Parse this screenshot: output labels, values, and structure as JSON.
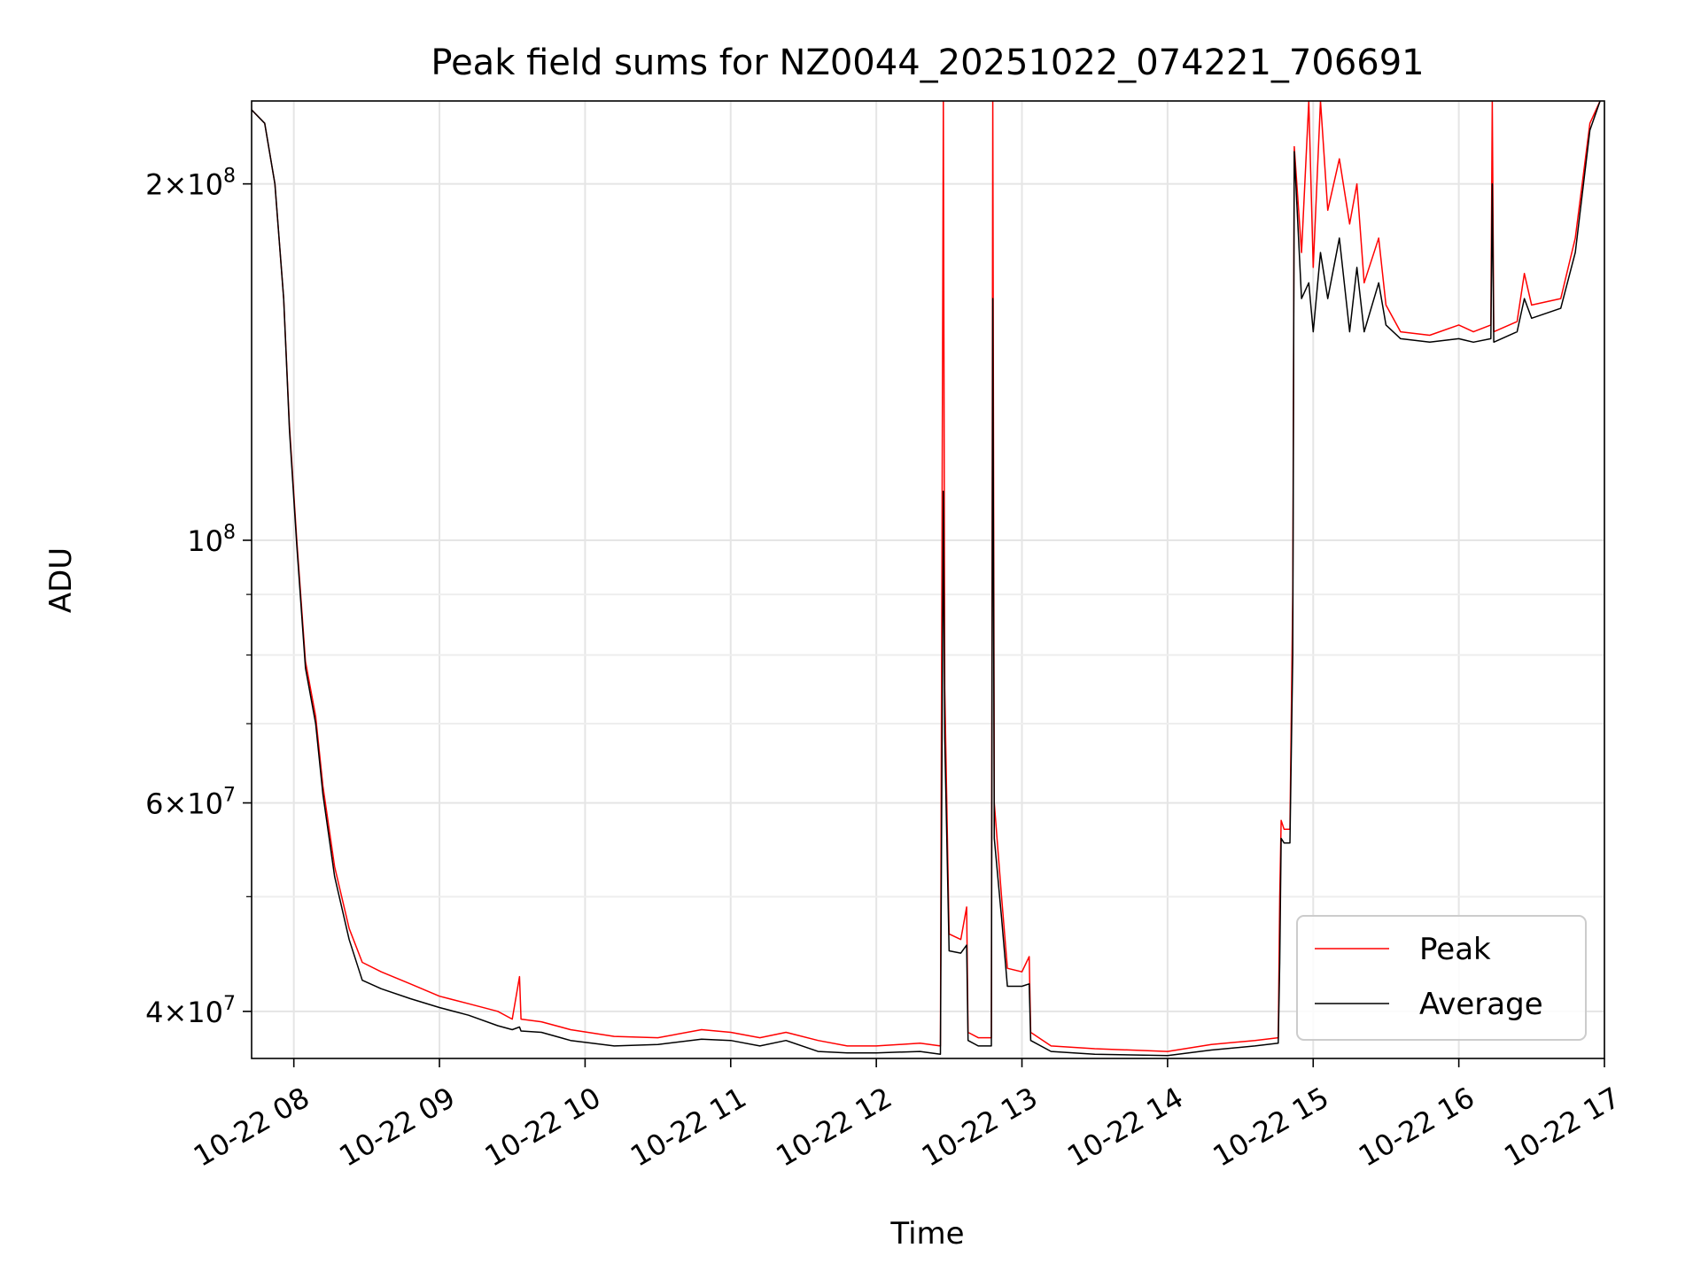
{
  "chart_data": {
    "type": "line",
    "title": "Peak field sums for NZ0044_20251022_074221_706691",
    "xlabel": "Time",
    "ylabel": "ADU",
    "x_unit": "hours (10-22)",
    "xlim": [
      7.71,
      17.0
    ],
    "ylim": [
      36500000,
      235000000
    ],
    "y_scale": "log",
    "grid": true,
    "legend_position": "lower right",
    "x_ticks": [
      {
        "value": 8,
        "label": "10-22 08"
      },
      {
        "value": 9,
        "label": "10-22 09"
      },
      {
        "value": 10,
        "label": "10-22 10"
      },
      {
        "value": 11,
        "label": "10-22 11"
      },
      {
        "value": 12,
        "label": "10-22 12"
      },
      {
        "value": 13,
        "label": "10-22 13"
      },
      {
        "value": 14,
        "label": "10-22 14"
      },
      {
        "value": 15,
        "label": "10-22 15"
      },
      {
        "value": 16,
        "label": "10-22 16"
      },
      {
        "value": 17,
        "label": "10-22 17"
      }
    ],
    "y_ticks": [
      {
        "value": 40000000,
        "mantissa": "4",
        "exponent": "7"
      },
      {
        "value": 60000000,
        "mantissa": "6",
        "exponent": "7"
      },
      {
        "value": 100000000,
        "mantissa": "",
        "exponent": "8"
      },
      {
        "value": 200000000,
        "mantissa": "2",
        "exponent": "8"
      }
    ],
    "y_minor_ticks": [
      50000000,
      70000000,
      80000000,
      90000000
    ],
    "series": [
      {
        "name": "Peak",
        "color": "#ff0000",
        "points": [
          [
            7.71,
            231000000
          ],
          [
            7.8,
            225000000
          ],
          [
            7.87,
            200000000
          ],
          [
            7.93,
            160000000
          ],
          [
            7.97,
            125000000
          ],
          [
            8.02,
            100000000
          ],
          [
            8.08,
            79000000
          ],
          [
            8.15,
            71000000
          ],
          [
            8.2,
            62000000
          ],
          [
            8.28,
            53000000
          ],
          [
            8.38,
            47000000
          ],
          [
            8.47,
            44000000
          ],
          [
            8.6,
            43200000
          ],
          [
            8.8,
            42200000
          ],
          [
            9.0,
            41200000
          ],
          [
            9.2,
            40600000
          ],
          [
            9.4,
            40000000
          ],
          [
            9.5,
            39400000
          ],
          [
            9.55,
            42800000
          ],
          [
            9.56,
            39400000
          ],
          [
            9.7,
            39200000
          ],
          [
            9.9,
            38600000
          ],
          [
            10.2,
            38100000
          ],
          [
            10.5,
            38000000
          ],
          [
            10.8,
            38600000
          ],
          [
            11.0,
            38400000
          ],
          [
            11.2,
            38000000
          ],
          [
            11.38,
            38400000
          ],
          [
            11.6,
            37800000
          ],
          [
            11.8,
            37400000
          ],
          [
            12.0,
            37400000
          ],
          [
            12.3,
            37600000
          ],
          [
            12.44,
            37400000
          ],
          [
            12.46,
            235000000
          ],
          [
            12.47,
            75000000
          ],
          [
            12.5,
            46500000
          ],
          [
            12.58,
            46000000
          ],
          [
            12.62,
            49000000
          ],
          [
            12.63,
            38400000
          ],
          [
            12.7,
            38000000
          ],
          [
            12.79,
            38000000
          ],
          [
            12.8,
            235000000
          ],
          [
            12.81,
            60000000
          ],
          [
            12.86,
            50000000
          ],
          [
            12.9,
            43500000
          ],
          [
            13.0,
            43200000
          ],
          [
            13.05,
            44500000
          ],
          [
            13.06,
            38400000
          ],
          [
            13.2,
            37400000
          ],
          [
            13.5,
            37200000
          ],
          [
            14.0,
            37000000
          ],
          [
            14.3,
            37500000
          ],
          [
            14.6,
            37800000
          ],
          [
            14.76,
            38000000
          ],
          [
            14.77,
            50000000
          ],
          [
            14.78,
            58000000
          ],
          [
            14.8,
            57000000
          ],
          [
            14.84,
            57000000
          ],
          [
            14.86,
            90000000
          ],
          [
            14.87,
            215000000
          ],
          [
            14.92,
            175000000
          ],
          [
            14.97,
            235000000
          ],
          [
            15.0,
            170000000
          ],
          [
            15.05,
            235000000
          ],
          [
            15.1,
            190000000
          ],
          [
            15.18,
            210000000
          ],
          [
            15.25,
            185000000
          ],
          [
            15.3,
            200000000
          ],
          [
            15.35,
            165000000
          ],
          [
            15.45,
            180000000
          ],
          [
            15.5,
            158000000
          ],
          [
            15.6,
            150000000
          ],
          [
            15.8,
            149000000
          ],
          [
            16.0,
            152000000
          ],
          [
            16.1,
            150000000
          ],
          [
            16.22,
            152000000
          ],
          [
            16.23,
            235000000
          ],
          [
            16.24,
            150000000
          ],
          [
            16.4,
            153000000
          ],
          [
            16.45,
            168000000
          ],
          [
            16.5,
            158000000
          ],
          [
            16.7,
            160000000
          ],
          [
            16.8,
            180000000
          ],
          [
            16.9,
            225000000
          ],
          [
            16.97,
            235000000
          ]
        ]
      },
      {
        "name": "Average",
        "color": "#000000",
        "points": [
          [
            7.71,
            231000000
          ],
          [
            7.8,
            225000000
          ],
          [
            7.87,
            200000000
          ],
          [
            7.93,
            160000000
          ],
          [
            7.97,
            124000000
          ],
          [
            8.02,
            99000000
          ],
          [
            8.08,
            78000000
          ],
          [
            8.15,
            70000000
          ],
          [
            8.2,
            61000000
          ],
          [
            8.28,
            52000000
          ],
          [
            8.38,
            46000000
          ],
          [
            8.47,
            42500000
          ],
          [
            8.6,
            41800000
          ],
          [
            8.8,
            41000000
          ],
          [
            9.0,
            40300000
          ],
          [
            9.2,
            39700000
          ],
          [
            9.4,
            38900000
          ],
          [
            9.5,
            38600000
          ],
          [
            9.55,
            38800000
          ],
          [
            9.56,
            38500000
          ],
          [
            9.7,
            38400000
          ],
          [
            9.9,
            37800000
          ],
          [
            10.2,
            37400000
          ],
          [
            10.5,
            37500000
          ],
          [
            10.8,
            37900000
          ],
          [
            11.0,
            37800000
          ],
          [
            11.2,
            37400000
          ],
          [
            11.38,
            37800000
          ],
          [
            11.6,
            37000000
          ],
          [
            11.8,
            36900000
          ],
          [
            12.0,
            36900000
          ],
          [
            12.3,
            37000000
          ],
          [
            12.44,
            36800000
          ],
          [
            12.46,
            110000000
          ],
          [
            12.47,
            68000000
          ],
          [
            12.5,
            45000000
          ],
          [
            12.58,
            44800000
          ],
          [
            12.62,
            45500000
          ],
          [
            12.63,
            37800000
          ],
          [
            12.7,
            37400000
          ],
          [
            12.79,
            37400000
          ],
          [
            12.8,
            160000000
          ],
          [
            12.81,
            56000000
          ],
          [
            12.86,
            48000000
          ],
          [
            12.9,
            42000000
          ],
          [
            13.0,
            42000000
          ],
          [
            13.05,
            42200000
          ],
          [
            13.06,
            37800000
          ],
          [
            13.2,
            37000000
          ],
          [
            13.5,
            36800000
          ],
          [
            14.0,
            36700000
          ],
          [
            14.3,
            37100000
          ],
          [
            14.6,
            37400000
          ],
          [
            14.76,
            37600000
          ],
          [
            14.77,
            44000000
          ],
          [
            14.78,
            56000000
          ],
          [
            14.8,
            55500000
          ],
          [
            14.84,
            55500000
          ],
          [
            14.86,
            80000000
          ],
          [
            14.87,
            213000000
          ],
          [
            14.92,
            160000000
          ],
          [
            14.97,
            165000000
          ],
          [
            15.0,
            150000000
          ],
          [
            15.05,
            175000000
          ],
          [
            15.1,
            160000000
          ],
          [
            15.18,
            180000000
          ],
          [
            15.25,
            150000000
          ],
          [
            15.3,
            170000000
          ],
          [
            15.35,
            150000000
          ],
          [
            15.45,
            165000000
          ],
          [
            15.5,
            152000000
          ],
          [
            15.6,
            148000000
          ],
          [
            15.8,
            147000000
          ],
          [
            16.0,
            148000000
          ],
          [
            16.1,
            147000000
          ],
          [
            16.22,
            148000000
          ],
          [
            16.23,
            200000000
          ],
          [
            16.24,
            147000000
          ],
          [
            16.4,
            150000000
          ],
          [
            16.45,
            160000000
          ],
          [
            16.5,
            154000000
          ],
          [
            16.7,
            157000000
          ],
          [
            16.8,
            175000000
          ],
          [
            16.9,
            222000000
          ],
          [
            16.97,
            235000000
          ]
        ]
      }
    ]
  }
}
